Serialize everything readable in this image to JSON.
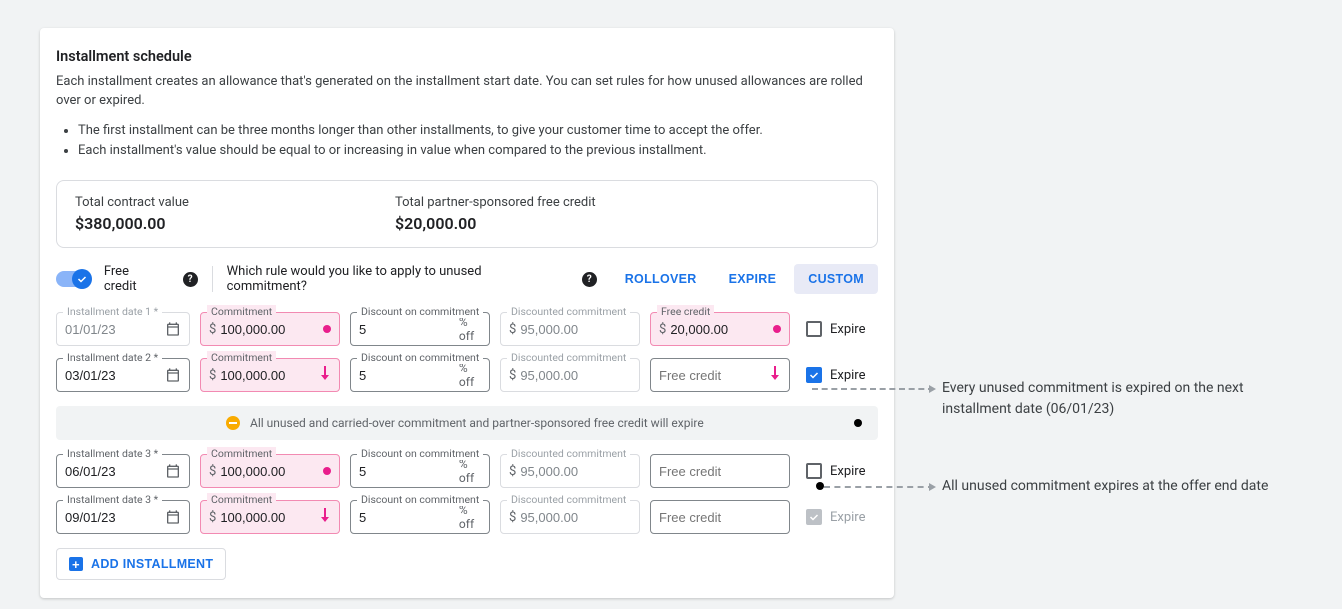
{
  "header": {
    "title": "Installment schedule",
    "intro": "Each installment creates an allowance that's generated on the installment start date. You can set rules for how unused allowances are rolled over or expired.",
    "bullets": [
      "The first installment can be three months longer than other installments, to give your customer time to accept the offer.",
      "Each installment's value should be equal to or increasing in value when compared to the previous installment."
    ]
  },
  "totals": {
    "tcv_label": "Total contract value",
    "tcv_value": "$380,000.00",
    "fc_label": "Total partner-sponsored free credit",
    "fc_value": "$20,000.00"
  },
  "rules": {
    "free_credit_label": "Free credit",
    "question": "Which rule would you like to apply to unused commitment?",
    "options": {
      "rollover": "ROLLOVER",
      "expire": "EXPIRE",
      "custom": "CUSTOM"
    },
    "active": "custom"
  },
  "field_labels": {
    "date": "Installment date",
    "commitment": "Commitment",
    "discount": "Discount on commitment",
    "discounted": "Discounted commitment",
    "free_credit": "Free credit",
    "pct_off": "% off",
    "currency": "$",
    "expire": "Expire"
  },
  "rows": [
    {
      "idx": "1",
      "date": "01/01/23",
      "date_disabled": true,
      "commitment": "100,000.00",
      "commitment_marker": "dot",
      "discount": "5",
      "discounted": "95,000.00",
      "free_credit_value": "20,000.00",
      "free_credit_pink": true,
      "free_credit_marker": "dot",
      "expire_checked": false,
      "expire_disabled": false
    },
    {
      "idx": "2",
      "date": "03/01/23",
      "date_disabled": false,
      "commitment": "100,000.00",
      "commitment_marker": "arrow",
      "discount": "5",
      "discounted": "95,000.00",
      "free_credit_value": "",
      "free_credit_pink": false,
      "free_credit_marker": "arrow",
      "expire_checked": true,
      "expire_disabled": false
    }
  ],
  "banner": "All unused and carried-over commitment and partner-sponsored free credit will expire",
  "rows2": [
    {
      "idx": " 3",
      "date": "06/01/23",
      "commitment": "100,000.00",
      "commitment_marker": "dot",
      "discount": "5",
      "discounted": "95,000.00",
      "free_credit_value": "",
      "expire_checked": false,
      "expire_disabled": false
    },
    {
      "idx": " 3",
      "date": "09/01/23",
      "commitment": "100,000.00",
      "commitment_marker": "arrow",
      "discount": "5",
      "discounted": "95,000.00",
      "free_credit_value": "",
      "expire_checked": true,
      "expire_disabled": true
    }
  ],
  "add_label": "ADD INSTALLMENT",
  "annotations": {
    "a1": "Every unused commitment is expired on the next installment date (06/01/23)",
    "a2": "All unused commitment expires at the offer end date"
  }
}
